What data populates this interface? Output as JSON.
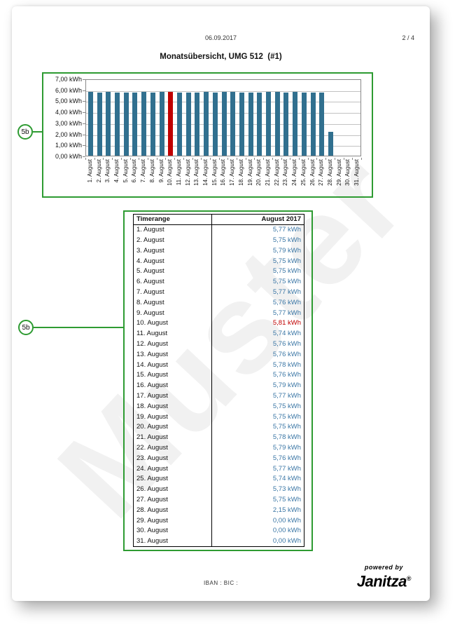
{
  "header": {
    "date": "06.09.2017",
    "page_indicator": "2 / 4",
    "title": "Monatsübersicht, UMG 512  (#1)"
  },
  "watermark": {
    "text": "Muster"
  },
  "callouts": [
    {
      "label": "5b"
    },
    {
      "label": "5b"
    }
  ],
  "chart_data": {
    "type": "bar",
    "title": "",
    "xlabel": "",
    "ylabel": "kWh",
    "ylim": [
      0,
      7
    ],
    "grid": true,
    "legend": false,
    "yticks": [
      "7,00 kWh",
      "6,00 kWh",
      "5,00 kWh",
      "4,00 kWh",
      "3,00 kWh",
      "2,00 kWh",
      "1,00 kWh",
      "0,00 kWh"
    ],
    "categories": [
      "1. August",
      "2. August",
      "3. August",
      "4. August",
      "5. August",
      "6. August",
      "7. August",
      "8. August",
      "9. August",
      "10. August",
      "11. August",
      "12. August",
      "13. August",
      "14. August",
      "15. August",
      "16. August",
      "17. August",
      "18. August",
      "19. August",
      "20. August",
      "21. August",
      "22. August",
      "23. August",
      "24. August",
      "25. August",
      "26. August",
      "27. August",
      "28. August",
      "29. August",
      "30. August",
      "31. August"
    ],
    "values": [
      5.77,
      5.75,
      5.79,
      5.75,
      5.75,
      5.75,
      5.77,
      5.76,
      5.77,
      5.81,
      5.74,
      5.76,
      5.76,
      5.78,
      5.76,
      5.79,
      5.77,
      5.75,
      5.75,
      5.75,
      5.78,
      5.79,
      5.76,
      5.77,
      5.74,
      5.73,
      5.75,
      2.15,
      0.0,
      0.0,
      0.0
    ],
    "highlight_index": 9,
    "bar_color": "#31708F",
    "highlight_color": "#C00000"
  },
  "table": {
    "headers": [
      "Timerange",
      "August 2017"
    ],
    "value_color": "#3A76A5",
    "highlight_color": "#C00000",
    "rows": [
      {
        "label": "1. August",
        "value": "5,77 kWh",
        "highlight": false
      },
      {
        "label": "2. August",
        "value": "5,75 kWh",
        "highlight": false
      },
      {
        "label": "3. August",
        "value": "5,79 kWh",
        "highlight": false
      },
      {
        "label": "4. August",
        "value": "5,75 kWh",
        "highlight": false
      },
      {
        "label": "5. August",
        "value": "5,75 kWh",
        "highlight": false
      },
      {
        "label": "6. August",
        "value": "5,75 kWh",
        "highlight": false
      },
      {
        "label": "7. August",
        "value": "5,77 kWh",
        "highlight": false
      },
      {
        "label": "8. August",
        "value": "5,76 kWh",
        "highlight": false
      },
      {
        "label": "9. August",
        "value": "5,77 kWh",
        "highlight": false
      },
      {
        "label": "10. August",
        "value": "5,81 kWh",
        "highlight": true
      },
      {
        "label": "11. August",
        "value": "5,74 kWh",
        "highlight": false
      },
      {
        "label": "12. August",
        "value": "5,76 kWh",
        "highlight": false
      },
      {
        "label": "13. August",
        "value": "5,76 kWh",
        "highlight": false
      },
      {
        "label": "14. August",
        "value": "5,78 kWh",
        "highlight": false
      },
      {
        "label": "15. August",
        "value": "5,76 kWh",
        "highlight": false
      },
      {
        "label": "16. August",
        "value": "5,79 kWh",
        "highlight": false
      },
      {
        "label": "17. August",
        "value": "5,77 kWh",
        "highlight": false
      },
      {
        "label": "18. August",
        "value": "5,75 kWh",
        "highlight": false
      },
      {
        "label": "19. August",
        "value": "5,75 kWh",
        "highlight": false
      },
      {
        "label": "20. August",
        "value": "5,75 kWh",
        "highlight": false
      },
      {
        "label": "21. August",
        "value": "5,78 kWh",
        "highlight": false
      },
      {
        "label": "22. August",
        "value": "5,79 kWh",
        "highlight": false
      },
      {
        "label": "23. August",
        "value": "5,76 kWh",
        "highlight": false
      },
      {
        "label": "24. August",
        "value": "5,77 kWh",
        "highlight": false
      },
      {
        "label": "25. August",
        "value": "5,74 kWh",
        "highlight": false
      },
      {
        "label": "26. August",
        "value": "5,73 kWh",
        "highlight": false
      },
      {
        "label": "27. August",
        "value": "5,75 kWh",
        "highlight": false
      },
      {
        "label": "28. August",
        "value": "2,15 kWh",
        "highlight": false
      },
      {
        "label": "29. August",
        "value": "0,00 kWh",
        "highlight": false
      },
      {
        "label": "30. August",
        "value": "0,00 kWh",
        "highlight": false
      },
      {
        "label": "31. August",
        "value": "0,00 kWh",
        "highlight": false
      }
    ]
  },
  "footer": {
    "iban_bic": "IBAN  :  BIC  :",
    "logo_top": "powered by",
    "logo_brand": "Janitza",
    "logo_reg": "®"
  }
}
